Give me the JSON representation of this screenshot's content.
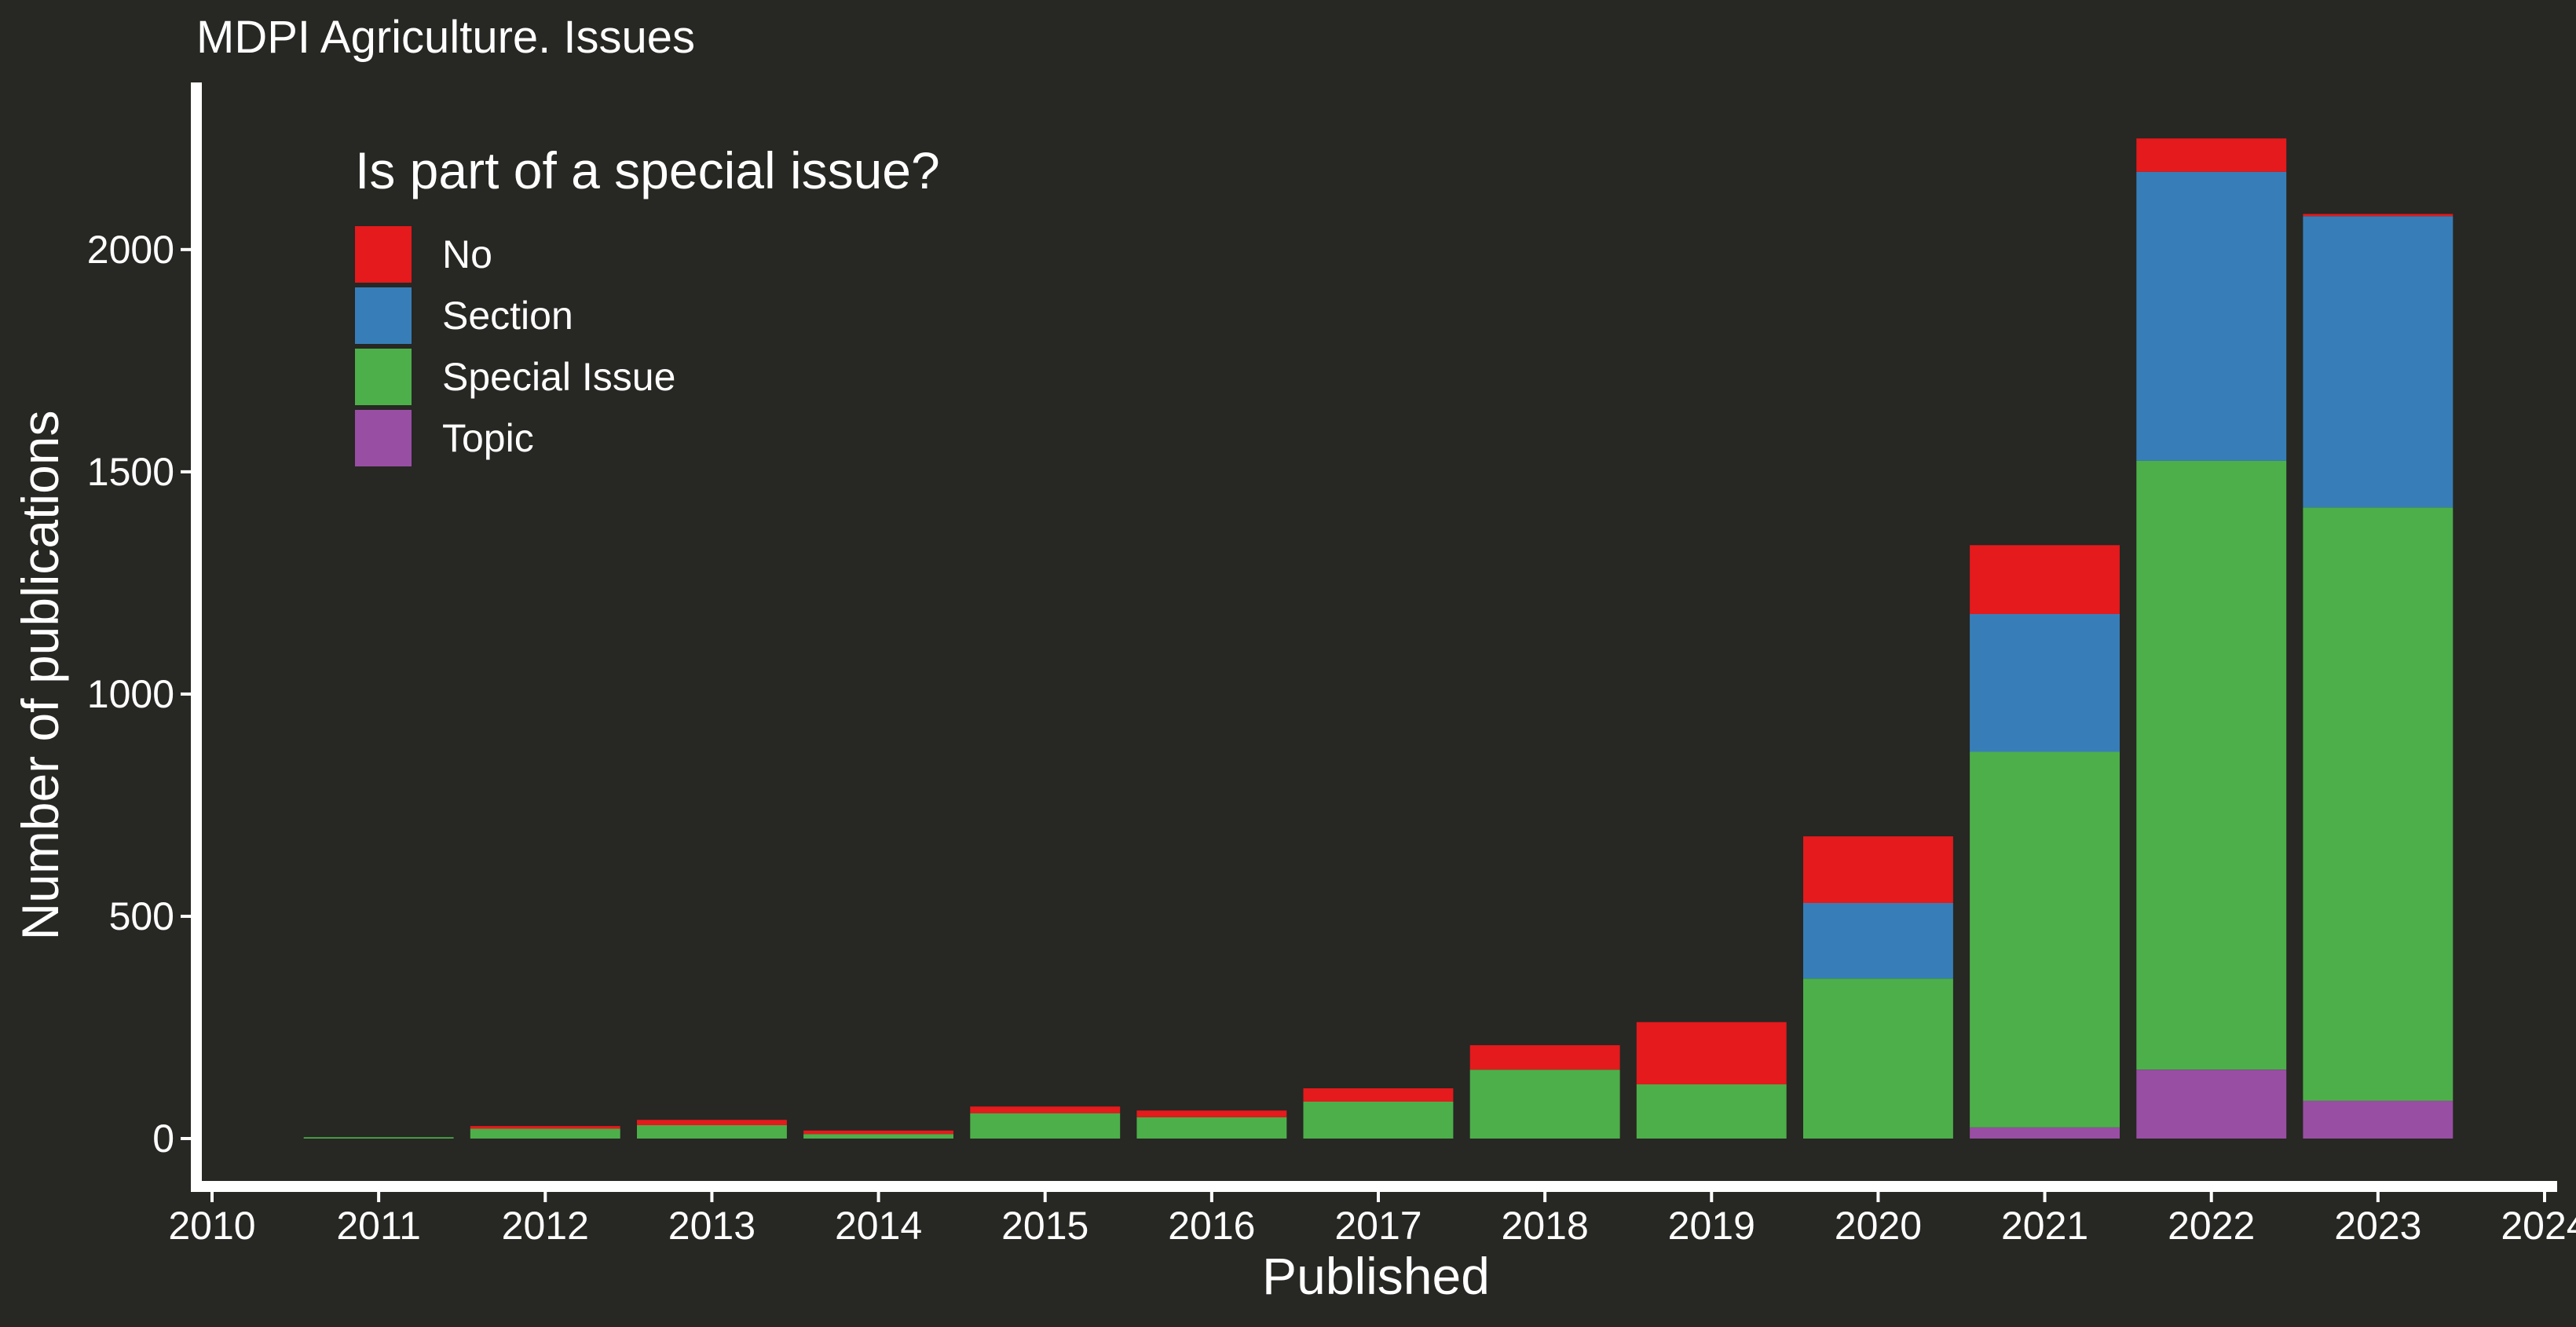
{
  "chart_data": {
    "type": "bar",
    "stacked": true,
    "title": "MDPI Agriculture. Issues",
    "xlabel": "Published",
    "ylabel": "Number of publications",
    "x": [
      2011,
      2012,
      2013,
      2014,
      2015,
      2016,
      2017,
      2018,
      2019,
      2020,
      2021,
      2022,
      2023
    ],
    "xlim": [
      2010,
      2024
    ],
    "xticks": [
      "2010",
      "2011",
      "2012",
      "2013",
      "2014",
      "2015",
      "2016",
      "2017",
      "2018",
      "2019",
      "2020",
      "2021",
      "2022",
      "2023",
      "2024"
    ],
    "ylim": [
      0,
      2300
    ],
    "yticks": [
      "0",
      "500",
      "1000",
      "1500",
      "2000"
    ],
    "grid": false,
    "legend": {
      "title": "Is part of a special issue?",
      "position": "top-left",
      "entries": [
        "No",
        "Section",
        "Special Issue",
        "Topic"
      ]
    },
    "series": [
      {
        "name": "Topic",
        "color": "#984EA3",
        "values": [
          0,
          0,
          0,
          0,
          0,
          0,
          0,
          0,
          0,
          0,
          25,
          155,
          85
        ]
      },
      {
        "name": "Special Issue",
        "color": "#4DAF4A",
        "values": [
          3,
          22,
          30,
          10,
          57,
          48,
          83,
          155,
          122,
          360,
          845,
          1370,
          1335
        ]
      },
      {
        "name": "Section",
        "color": "#377EB8",
        "values": [
          0,
          0,
          0,
          0,
          0,
          0,
          0,
          0,
          0,
          170,
          310,
          650,
          655
        ]
      },
      {
        "name": "No",
        "color": "#E41A1C",
        "values": [
          0,
          6,
          12,
          8,
          15,
          15,
          30,
          55,
          140,
          150,
          155,
          75,
          5
        ]
      }
    ]
  }
}
